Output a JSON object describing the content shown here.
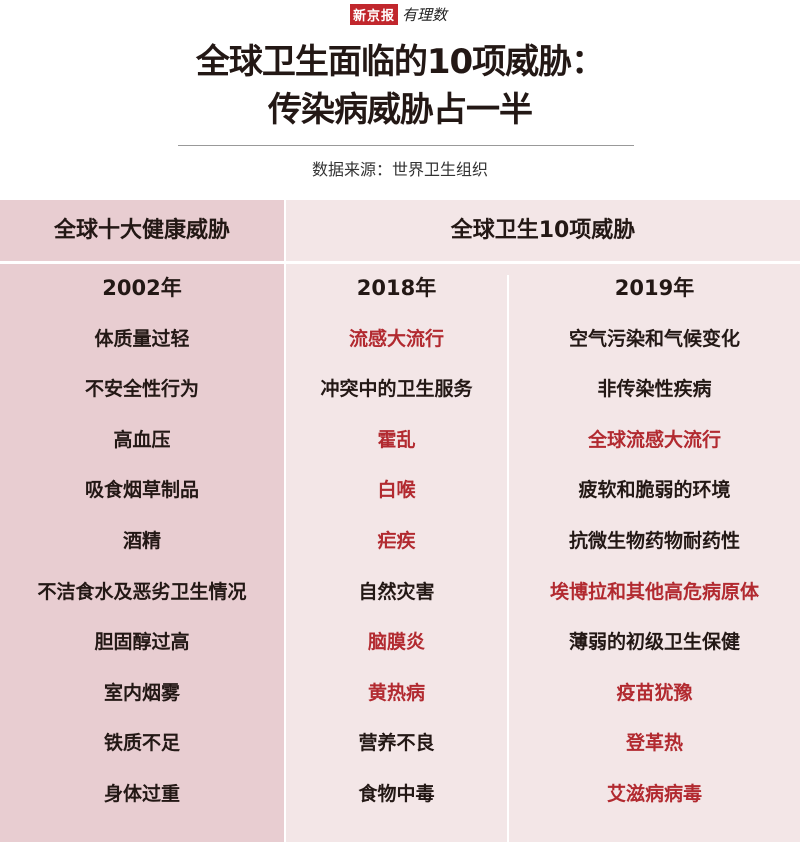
{
  "logo": {
    "brand": "新京报",
    "sub": "有理数"
  },
  "title": [
    "全球卫生面临的10项威胁：",
    "传染病威胁占一半"
  ],
  "source": "数据来源：世界卫生组织",
  "headers": {
    "left": "全球十大健康威胁",
    "right": "全球卫生10项威胁"
  },
  "colors": {
    "highlight": "#b22a30",
    "left_bg": "#e8cdd1",
    "right_bg": "#f3e6e7"
  },
  "columns": [
    {
      "year": "2002年",
      "items": [
        {
          "text": "体质量过轻",
          "highlight": false
        },
        {
          "text": "不安全性行为",
          "highlight": false
        },
        {
          "text": "高血压",
          "highlight": false
        },
        {
          "text": "吸食烟草制品",
          "highlight": false
        },
        {
          "text": "酒精",
          "highlight": false
        },
        {
          "text": "不洁食水及恶劣卫生情况",
          "highlight": false
        },
        {
          "text": "胆固醇过高",
          "highlight": false
        },
        {
          "text": "室内烟雾",
          "highlight": false
        },
        {
          "text": "铁质不足",
          "highlight": false
        },
        {
          "text": "身体过重",
          "highlight": false
        }
      ]
    },
    {
      "year": "2018年",
      "items": [
        {
          "text": "流感大流行",
          "highlight": true
        },
        {
          "text": "冲突中的卫生服务",
          "highlight": false
        },
        {
          "text": "霍乱",
          "highlight": true
        },
        {
          "text": "白喉",
          "highlight": true
        },
        {
          "text": "疟疾",
          "highlight": true
        },
        {
          "text": "自然灾害",
          "highlight": false
        },
        {
          "text": "脑膜炎",
          "highlight": true
        },
        {
          "text": "黄热病",
          "highlight": true
        },
        {
          "text": "营养不良",
          "highlight": false
        },
        {
          "text": "食物中毒",
          "highlight": false
        }
      ]
    },
    {
      "year": "2019年",
      "items": [
        {
          "text": "空气污染和气候变化",
          "highlight": false
        },
        {
          "text": "非传染性疾病",
          "highlight": false
        },
        {
          "text": "全球流感大流行",
          "highlight": true
        },
        {
          "text": "疲软和脆弱的环境",
          "highlight": false
        },
        {
          "text": "抗微生物药物耐药性",
          "highlight": false
        },
        {
          "text": "埃博拉和其他高危病原体",
          "highlight": true
        },
        {
          "text": "薄弱的初级卫生保健",
          "highlight": false
        },
        {
          "text": "疫苗犹豫",
          "highlight": true
        },
        {
          "text": "登革热",
          "highlight": true
        },
        {
          "text": "艾滋病病毒",
          "highlight": true
        }
      ]
    }
  ]
}
